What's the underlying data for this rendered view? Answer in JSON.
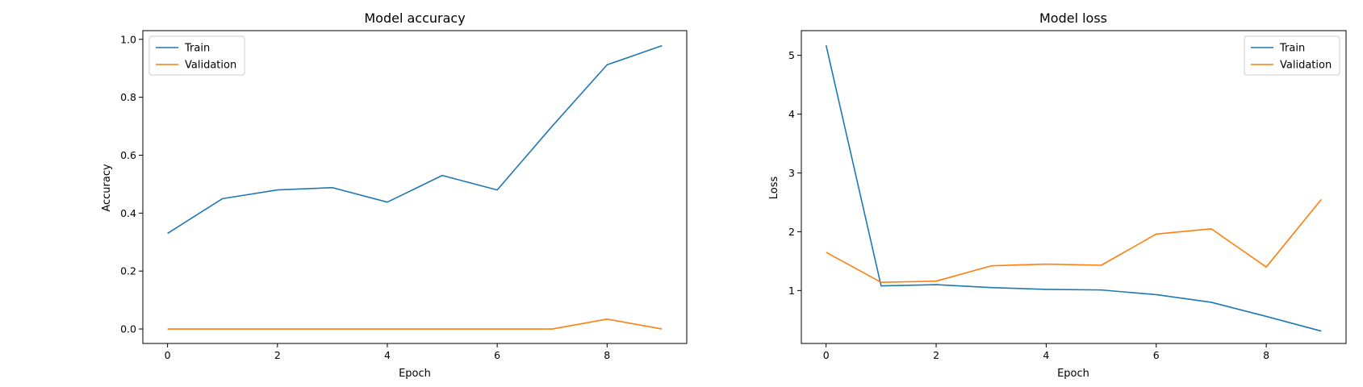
{
  "chart_data": [
    {
      "type": "line",
      "title": "Model accuracy",
      "xlabel": "Epoch",
      "ylabel": "Accuracy",
      "xlim": [
        -0.45,
        9.45
      ],
      "ylim": [
        -0.05,
        1.03
      ],
      "xticks": [
        0,
        2,
        4,
        6,
        8
      ],
      "xtick_labels": [
        "0",
        "2",
        "4",
        "6",
        "8"
      ],
      "yticks": [
        0.0,
        0.2,
        0.4,
        0.6,
        0.8,
        1.0
      ],
      "ytick_labels": [
        "0.0",
        "0.2",
        "0.4",
        "0.6",
        "0.8",
        "1.0"
      ],
      "legend_position": "top-left",
      "grid": false,
      "x": [
        0,
        1,
        2,
        3,
        4,
        5,
        6,
        7,
        8,
        9
      ],
      "series": [
        {
          "name": "Train",
          "color": "#1f77b4",
          "values": [
            0.33,
            0.45,
            0.48,
            0.488,
            0.438,
            0.53,
            0.48,
            0.7,
            0.912,
            0.978
          ]
        },
        {
          "name": "Validation",
          "color": "#ff7f0e",
          "values": [
            0.0,
            0.0,
            0.0,
            0.0,
            0.0,
            0.0,
            0.0,
            0.0,
            0.034,
            0.0
          ]
        }
      ]
    },
    {
      "type": "line",
      "title": "Model loss",
      "xlabel": "Epoch",
      "ylabel": "Loss",
      "xlim": [
        -0.45,
        9.45
      ],
      "ylim": [
        0.1,
        5.42
      ],
      "xticks": [
        0,
        2,
        4,
        6,
        8
      ],
      "xtick_labels": [
        "0",
        "2",
        "4",
        "6",
        "8"
      ],
      "yticks": [
        1,
        2,
        3,
        4,
        5
      ],
      "ytick_labels": [
        "1",
        "2",
        "3",
        "4",
        "5"
      ],
      "legend_position": "top-right",
      "grid": false,
      "x": [
        0,
        1,
        2,
        3,
        4,
        5,
        6,
        7,
        8,
        9
      ],
      "series": [
        {
          "name": "Train",
          "color": "#1f77b4",
          "values": [
            5.17,
            1.08,
            1.1,
            1.05,
            1.02,
            1.01,
            0.93,
            0.8,
            0.56,
            0.31
          ]
        },
        {
          "name": "Validation",
          "color": "#ff7f0e",
          "values": [
            1.65,
            1.14,
            1.16,
            1.42,
            1.45,
            1.43,
            1.96,
            2.05,
            1.4,
            2.55
          ]
        }
      ]
    }
  ]
}
